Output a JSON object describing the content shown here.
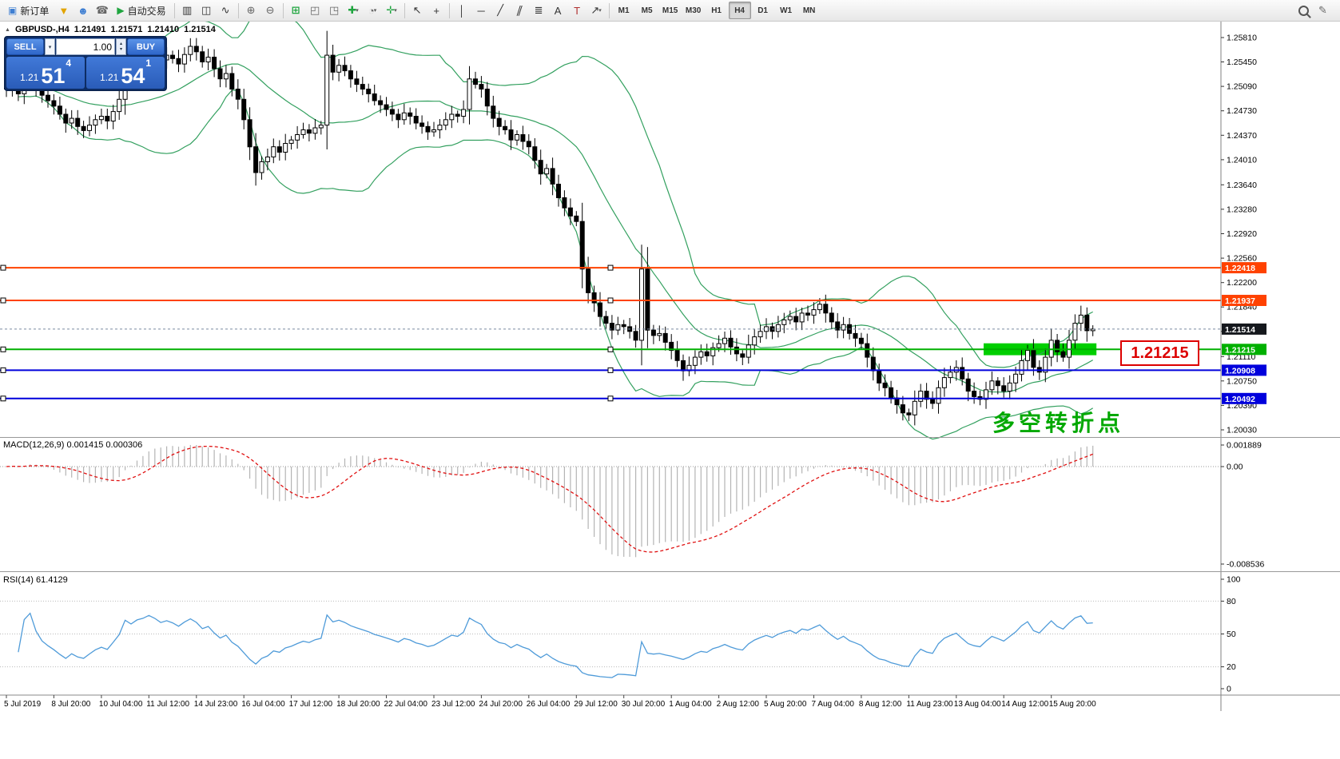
{
  "toolbar": {
    "new_order_label": "新订单",
    "autotrading_label": "自动交易",
    "icons": {
      "new_order": "▣",
      "funnel": "▼",
      "community": "☻",
      "support": "☎",
      "autotrading_play": "▶",
      "bars_chart": "▥",
      "candle_chart": "◫",
      "line_chart": "∿",
      "zoom_in": "⊕",
      "zoom_out": "⊖",
      "grid": "⊞",
      "tile_windows": "◰",
      "cascade_windows": "◳",
      "new_chart": "✚",
      "periods": "◔",
      "indicators": "✛",
      "cursor": "↖",
      "crosshair": "+",
      "vline": "│",
      "hline": "─",
      "trendline": "╱",
      "channel": "∥",
      "fibonacci": "≣",
      "text": "A",
      "label": "T",
      "arrows": "↗",
      "dropdown": "▾",
      "edit": "✎",
      "panel_toggle": "▲"
    },
    "timeframes": [
      "M1",
      "M5",
      "M15",
      "M30",
      "H1",
      "H4",
      "D1",
      "W1",
      "MN"
    ],
    "active_timeframe": "H4"
  },
  "trade_panel": {
    "sell_label": "SELL",
    "buy_label": "BUY",
    "volume": "1.00",
    "sell_price_small": "1.21",
    "sell_price_big": "51",
    "sell_price_sup": "4",
    "buy_price_small": "1.21",
    "buy_price_big": "54",
    "buy_price_sup": "1"
  },
  "chart_info": {
    "symbol_period": "GBPUSD-,H4",
    "open": "1.21491",
    "high": "1.21571",
    "low": "1.21410",
    "close": "1.21514"
  },
  "annotations": {
    "zone_label": "1.21215",
    "turning_point": "多空转折点"
  },
  "macd": {
    "label": "MACD(12,26,9)",
    "value_main": "0.001415",
    "value_signal": "0.000306",
    "scale_top": "0.001889",
    "scale_zero": "0.00",
    "scale_bottom": "-0.008536"
  },
  "rsi": {
    "label": "RSI(14)",
    "value": "61.4129",
    "scale": [
      "100",
      "80",
      "50",
      "20",
      "0"
    ],
    "levels": [
      80,
      50,
      20
    ]
  },
  "y_axis": [
    "1.25810",
    "1.25450",
    "1.25090",
    "1.24730",
    "1.24370",
    "1.24010",
    "1.23640",
    "1.23280",
    "1.22920",
    "1.22560",
    "1.22200",
    "1.21840",
    "1.21480",
    "1.21110",
    "1.20750",
    "1.20390",
    "1.20030"
  ],
  "x_axis": [
    "5 Jul 2019",
    "8 Jul 20:00",
    "10 Jul 04:00",
    "11 Jul 12:00",
    "14 Jul 23:00",
    "16 Jul 04:00",
    "17 Jul 12:00",
    "18 Jul 20:00",
    "22 Jul 04:00",
    "23 Jul 12:00",
    "24 Jul 20:00",
    "26 Jul 04:00",
    "29 Jul 12:00",
    "30 Jul 20:00",
    "1 Aug 04:00",
    "2 Aug 12:00",
    "5 Aug 20:00",
    "7 Aug 04:00",
    "8 Aug 12:00",
    "11 Aug 23:00",
    "13 Aug 04:00",
    "14 Aug 12:00",
    "15 Aug 20:00"
  ],
  "colors": {
    "bands": "#33a05f",
    "macd_hist": "#b4b4b4",
    "macd_signal": "#e01010",
    "rsi": "#4f9bd9",
    "candle_up": "#ffffff",
    "candle_down": "#000000",
    "bid_line": "#7a8aa0"
  },
  "chart_data": {
    "type": "candlestick",
    "symbol": "GBPUSD",
    "period": "H4",
    "y_range": {
      "max": 1.26045,
      "min": 1.19936
    },
    "indicators": {
      "bollinger": {
        "period": 20,
        "deviation": 2
      },
      "macd": {
        "fast": 12,
        "slow": 26,
        "signal": 9
      },
      "rsi": {
        "period": 14
      }
    },
    "closes": [
      1.2505,
      1.2512,
      1.2498,
      1.2515,
      1.2522,
      1.2508,
      1.2496,
      1.2488,
      1.248,
      1.2468,
      1.2455,
      1.2462,
      1.245,
      1.2444,
      1.2452,
      1.246,
      1.2465,
      1.2458,
      1.2472,
      1.249,
      1.2538,
      1.2528,
      1.2545,
      1.2552,
      1.2565,
      1.2558,
      1.2548,
      1.2555,
      1.255,
      1.2542,
      1.2556,
      1.2568,
      1.256,
      1.2545,
      1.2552,
      1.2535,
      1.252,
      1.2528,
      1.2505,
      1.249,
      1.246,
      1.242,
      1.2382,
      1.2398,
      1.2405,
      1.242,
      1.2412,
      1.2425,
      1.243,
      1.2438,
      1.2445,
      1.244,
      1.2448,
      1.2452,
      1.2555,
      1.253,
      1.254,
      1.2532,
      1.252,
      1.2512,
      1.2505,
      1.2498,
      1.2488,
      1.2482,
      1.2475,
      1.2468,
      1.246,
      1.247,
      1.2465,
      1.2455,
      1.245,
      1.2442,
      1.2445,
      1.2452,
      1.246,
      1.2468,
      1.2465,
      1.2475,
      1.252,
      1.2512,
      1.2505,
      1.248,
      1.2462,
      1.245,
      1.2445,
      1.243,
      1.2438,
      1.2428,
      1.242,
      1.24,
      1.238,
      1.2388,
      1.2365,
      1.2345,
      1.233,
      1.2318,
      1.231,
      1.224,
      1.2205,
      1.219,
      1.217,
      1.216,
      1.215,
      1.2158,
      1.2155,
      1.2148,
      1.2135,
      1.224,
      1.215,
      1.2142,
      1.2145,
      1.2132,
      1.212,
      1.2105,
      1.209,
      1.2098,
      1.211,
      1.2118,
      1.2112,
      1.2124,
      1.213,
      1.2138,
      1.2125,
      1.2115,
      1.211,
      1.2128,
      1.214,
      1.2148,
      1.2155,
      1.2148,
      1.2158,
      1.2165,
      1.217,
      1.2162,
      1.2175,
      1.2172,
      1.218,
      1.2188,
      1.2175,
      1.2162,
      1.215,
      1.2158,
      1.2145,
      1.2138,
      1.213,
      1.211,
      1.209,
      1.2072,
      1.2065,
      1.205,
      1.204,
      1.2028,
      1.2025,
      1.2045,
      1.206,
      1.2048,
      1.2042,
      1.2065,
      1.208,
      1.2088,
      1.2095,
      1.2078,
      1.206,
      1.2052,
      1.2048,
      1.2062,
      1.2075,
      1.2068,
      1.206,
      1.2072,
      1.2085,
      1.2105,
      1.212,
      1.2095,
      1.2088,
      1.211,
      1.2135,
      1.2118,
      1.211,
      1.2135,
      1.216,
      1.2172,
      1.2149,
      1.21514
    ],
    "last_candle": {
      "open": 1.21491,
      "high": 1.21571,
      "low": 1.2141,
      "close": 1.21514
    },
    "levels": [
      {
        "price": 1.22418,
        "label": "1.22418",
        "color": "#ff4200"
      },
      {
        "price": 1.21937,
        "label": "1.21937",
        "color": "#ff4200"
      },
      {
        "price": 1.21215,
        "label": "1.21215",
        "color": "#00b000"
      },
      {
        "price": 1.20908,
        "label": "1.20908",
        "color": "#0000dc"
      },
      {
        "price": 1.20492,
        "label": "1.20492",
        "color": "#0000dc"
      }
    ],
    "current_price": {
      "price": 1.21514,
      "label": "1.21514",
      "badge_color": "#15181d"
    },
    "zone": {
      "from_index": 165,
      "to_index": 184,
      "price_low": 1.2113,
      "price_high": 1.21305,
      "color": "#00cf00"
    }
  }
}
